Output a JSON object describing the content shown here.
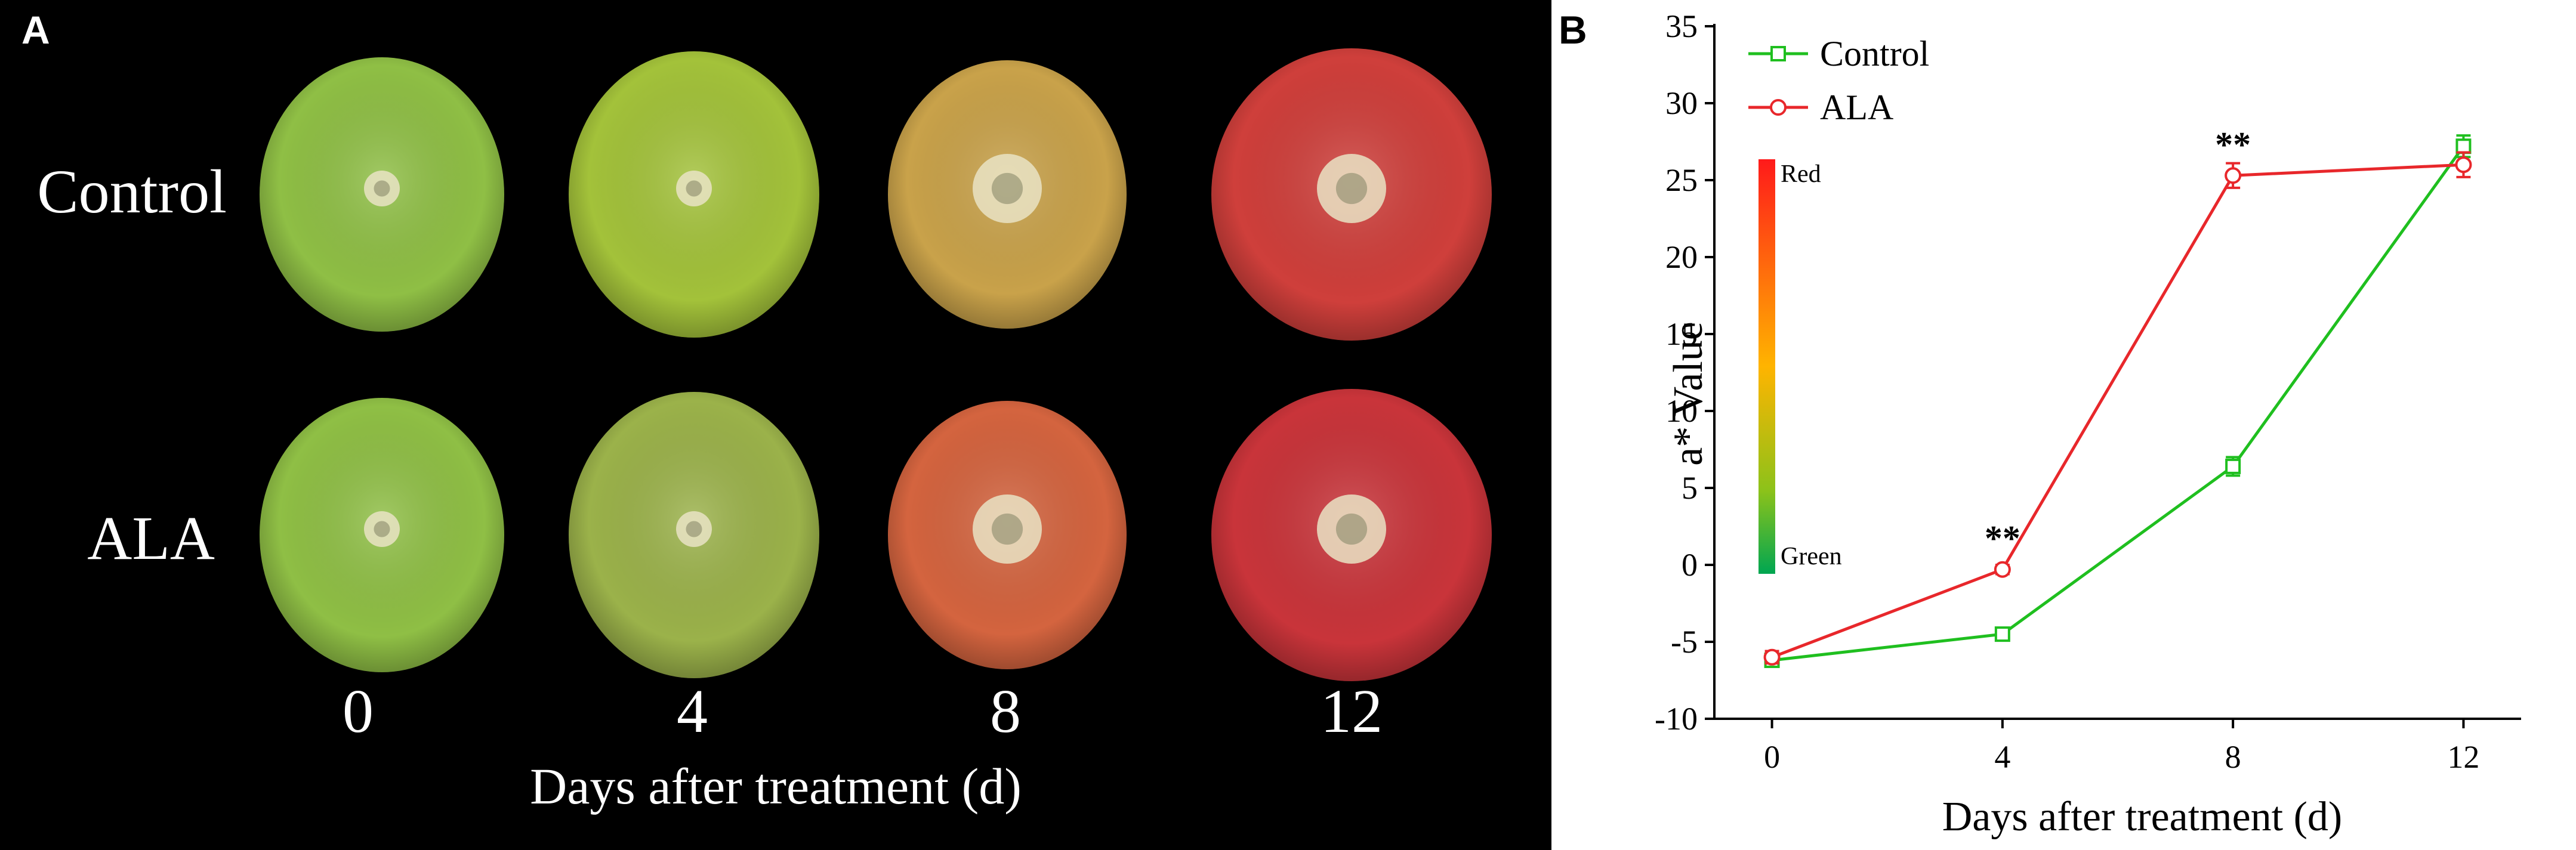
{
  "panel_a": {
    "letter": "A",
    "row_labels": [
      "Control",
      "ALA"
    ],
    "day_labels": [
      "0",
      "4",
      "8",
      "12"
    ],
    "xlabel": "Days after treatment (d)",
    "fruit_colors": {
      "control": [
        "#8fbf45",
        "#a3c23a",
        "#c9a24a",
        "#cf3f3b"
      ],
      "ala": [
        "#8fbf45",
        "#9bb24a",
        "#d4643f",
        "#c9343a"
      ]
    }
  },
  "panel_b": {
    "letter": "B",
    "scale_labels": {
      "top": "Red",
      "bottom": "Green"
    }
  },
  "chart_data": {
    "type": "line",
    "xlabel": "Days after treatment (d)",
    "ylabel": "a* Value",
    "x": [
      0,
      4,
      8,
      12
    ],
    "xticks": [
      "0",
      "4",
      "8",
      "12"
    ],
    "xlim": [
      -1,
      13
    ],
    "ylim": [
      -10,
      35
    ],
    "yticks": [
      "-10",
      "-5",
      "0",
      "5",
      "10",
      "15",
      "20",
      "25",
      "30",
      "35"
    ],
    "legend_position": "top-left",
    "series": [
      {
        "name": "Control",
        "values": [
          -6.2,
          -4.5,
          6.4,
          27.2
        ],
        "errors": [
          0.4,
          0.3,
          0.6,
          0.7
        ],
        "color": "#1fbf1f",
        "marker": "square"
      },
      {
        "name": "ALA",
        "values": [
          -6.0,
          -0.3,
          25.3,
          26.0
        ],
        "errors": [
          0.4,
          0.3,
          0.8,
          0.8
        ],
        "color": "#e8272b",
        "marker": "circle"
      }
    ],
    "annotations": [
      {
        "text": "**",
        "x": 4,
        "y": -0.3
      },
      {
        "text": "**",
        "x": 8,
        "y": 25.3
      }
    ]
  }
}
